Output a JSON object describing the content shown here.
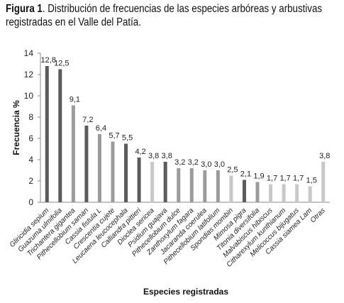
{
  "caption": {
    "label": "Figura 1",
    "text": ". Distribución de frecuencias de las especies arbóreas y arbustivas registradas en el Valle del Patía."
  },
  "colors": {
    "dark": "#5b5b5b",
    "mid": "#9b9b9b",
    "light": "#c8c8c8"
  },
  "chart_data": {
    "type": "bar",
    "title": "",
    "xlabel": "Especies registradas",
    "ylabel": "Frecuencia %",
    "ylim": [
      0,
      14
    ],
    "yticks": [
      0,
      2,
      4,
      6,
      8,
      10,
      12,
      14
    ],
    "grid": false,
    "categories": [
      "Gliricidia sepium",
      "Guazuma ulmifolia",
      "Trichantera gigantea",
      "Pithecellobium saman",
      "Cassia fistula L",
      "Crescentia cujete",
      "Leucaena leucocephala",
      "Calliandra pittieri",
      "Dioclea sericea",
      "Psidium guajava",
      "Pithecellobium dulce",
      "Zanthoxylum fagara",
      "Jacaranda coerulea",
      "Pithecellobium latifolium",
      "Spondias mombin",
      "Mimosa pigra",
      "Titonia diversifolia",
      "Malvabiscus hibiscus",
      "Citharexylum kunthianum",
      "Melicoccus bijugatus",
      "Cassia siamea Lam",
      "Otras"
    ],
    "values": [
      12.8,
      12.5,
      9.1,
      7.2,
      6.4,
      5.7,
      5.5,
      4.2,
      3.8,
      3.8,
      3.2,
      3.2,
      3.0,
      3.0,
      2.5,
      2.1,
      1.9,
      1.7,
      1.7,
      1.7,
      1.5,
      3.8
    ],
    "value_labels": [
      "12,8",
      "12,5",
      "9,1",
      "7,2",
      "6,4",
      "5,7",
      "5,5",
      "4,2",
      "3,8",
      "3,8",
      "3,2",
      "3,2",
      "3,0",
      "3,0",
      "2,5",
      "2,1",
      "1,9",
      "1,7",
      "1,7",
      "1,7",
      "1,5",
      "3,8"
    ],
    "bar_shades": [
      "dark",
      "dark",
      "mid",
      "dark",
      "mid",
      "mid",
      "dark",
      "dark",
      "light",
      "dark",
      "mid",
      "mid",
      "mid",
      "mid",
      "light",
      "dark",
      "mid",
      "light",
      "light",
      "light",
      "light",
      "light"
    ]
  }
}
